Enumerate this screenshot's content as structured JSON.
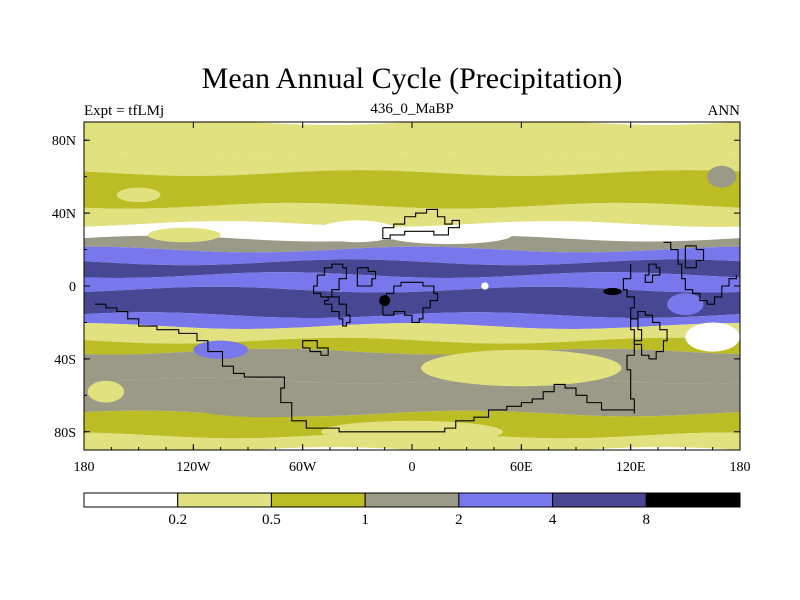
{
  "chart_data": {
    "type": "heatmap",
    "title": "Mean Annual Cycle (Precipitation)",
    "left_label": "Expt = tfLMj",
    "center_label": "436_0_MaBP",
    "right_label": "ANN",
    "x_range": [
      -180,
      180
    ],
    "y_range": [
      -90,
      90
    ],
    "x_ticks": [
      {
        "value": -180,
        "label": "180"
      },
      {
        "value": -120,
        "label": "120W"
      },
      {
        "value": -60,
        "label": "60W"
      },
      {
        "value": 0,
        "label": "0"
      },
      {
        "value": 60,
        "label": "60E"
      },
      {
        "value": 120,
        "label": "120E"
      },
      {
        "value": 180,
        "label": "180"
      }
    ],
    "y_ticks": [
      {
        "value": 80,
        "label": "80N"
      },
      {
        "value": 40,
        "label": "40N"
      },
      {
        "value": 0,
        "label": "0"
      },
      {
        "value": -40,
        "label": "40S"
      },
      {
        "value": -80,
        "label": "80S"
      }
    ],
    "colorbar": {
      "levels": [
        "0.2",
        "0.5",
        "1",
        "2",
        "4",
        "8"
      ],
      "colors": [
        "#ffffff",
        "#e1e17f",
        "#bcbc24",
        "#9a9a87",
        "#7878ec",
        "#474794",
        "#000000"
      ]
    },
    "bands": [
      {
        "lat_top": 90,
        "lat_bottom": 72,
        "level": 1
      },
      {
        "lat_top": 72,
        "lat_bottom": 62,
        "level": 1
      },
      {
        "lat_top": 62,
        "lat_bottom": 44,
        "level": 2
      },
      {
        "lat_top": 44,
        "lat_bottom": 34,
        "level": 1
      },
      {
        "lat_top": 34,
        "lat_bottom": 26,
        "level": 0
      },
      {
        "lat_top": 26,
        "lat_bottom": 20,
        "level": 3
      },
      {
        "lat_top": 20,
        "lat_bottom": 13,
        "level": 4
      },
      {
        "lat_top": 13,
        "lat_bottom": 6,
        "level": 5
      },
      {
        "lat_top": 6,
        "lat_bottom": -2,
        "level": 4
      },
      {
        "lat_top": -2,
        "lat_bottom": -16,
        "level": 5
      },
      {
        "lat_top": -16,
        "lat_bottom": -22,
        "level": 4
      },
      {
        "lat_top": -22,
        "lat_bottom": -30,
        "level": 1
      },
      {
        "lat_top": -30,
        "lat_bottom": -36,
        "level": 2
      },
      {
        "lat_top": -36,
        "lat_bottom": -52,
        "level": 3
      },
      {
        "lat_top": -52,
        "lat_bottom": -70,
        "level": 3
      },
      {
        "lat_top": -70,
        "lat_bottom": -82,
        "level": 2
      },
      {
        "lat_top": -82,
        "lat_bottom": -90,
        "level": 1
      }
    ],
    "patches": [
      {
        "lon": -150,
        "lat": 50,
        "rlon": 12,
        "rlat": 4,
        "level": 1
      },
      {
        "lon": -30,
        "lat": 30,
        "rlon": 22,
        "rlat": 6,
        "level": 0
      },
      {
        "lon": 20,
        "lat": 28,
        "rlon": 35,
        "rlat": 5,
        "level": 0
      },
      {
        "lon": 150,
        "lat": -10,
        "rlon": 10,
        "rlat": 6,
        "level": 4
      },
      {
        "lon": 165,
        "lat": -28,
        "rlon": 15,
        "rlat": 8,
        "level": 0
      },
      {
        "lon": -105,
        "lat": -35,
        "rlon": 15,
        "rlat": 5,
        "level": 4
      },
      {
        "lon": -168,
        "lat": -58,
        "rlon": 10,
        "rlat": 6,
        "level": 1
      },
      {
        "lon": 60,
        "lat": -45,
        "rlon": 55,
        "rlat": 10,
        "level": 1
      },
      {
        "lon": -80,
        "lat": -65,
        "rlon": 45,
        "rlat": 7,
        "level": 3
      },
      {
        "lon": 0,
        "lat": -80,
        "rlon": 50,
        "rlat": 6,
        "level": 1
      },
      {
        "lon": 170,
        "lat": 60,
        "rlon": 8,
        "rlat": 6,
        "level": 3
      },
      {
        "lon": -15,
        "lat": -8,
        "rlon": 3,
        "rlat": 3,
        "level": 6
      },
      {
        "lon": 110,
        "lat": -3,
        "rlon": 5,
        "rlat": 2,
        "level": 6
      },
      {
        "lon": 40,
        "lat": 0,
        "rlon": 2,
        "rlat": 2,
        "level": 0
      },
      {
        "lon": -125,
        "lat": 28,
        "rlon": 20,
        "rlat": 4,
        "level": 1
      }
    ],
    "coastlines": [
      [
        [
          -174,
          -10
        ],
        [
          -168,
          -12
        ],
        [
          -162,
          -14
        ],
        [
          -156,
          -18
        ],
        [
          -150,
          -22
        ],
        [
          -140,
          -24
        ],
        [
          -128,
          -26
        ],
        [
          -118,
          -30
        ],
        [
          -112,
          -36
        ],
        [
          -104,
          -44
        ],
        [
          -98,
          -48
        ],
        [
          -92,
          -50
        ],
        [
          -84,
          -50
        ],
        [
          -74,
          -50
        ],
        [
          -70,
          -56
        ],
        [
          -72,
          -64
        ],
        [
          -66,
          -74
        ],
        [
          -58,
          -78
        ],
        [
          -40,
          -80
        ],
        [
          -20,
          -80
        ],
        [
          0,
          -80
        ],
        [
          18,
          -78
        ],
        [
          24,
          -74
        ],
        [
          34,
          -72
        ],
        [
          42,
          -68
        ],
        [
          52,
          -66
        ],
        [
          60,
          -64
        ],
        [
          66,
          -62
        ],
        [
          72,
          -58
        ],
        [
          78,
          -54
        ],
        [
          84,
          -56
        ],
        [
          90,
          -60
        ],
        [
          96,
          -64
        ],
        [
          104,
          -68
        ],
        [
          112,
          -68
        ],
        [
          122,
          -70
        ],
        [
          122,
          -62
        ],
        [
          120,
          -54
        ],
        [
          120,
          -46
        ],
        [
          118,
          -38
        ],
        [
          122,
          -30
        ],
        [
          126,
          -24
        ],
        [
          124,
          -18
        ],
        [
          120,
          -12
        ],
        [
          122,
          -6
        ],
        [
          118,
          -2
        ],
        [
          116,
          4
        ],
        [
          120,
          12
        ]
      ],
      [
        [
          -48,
          -10
        ],
        [
          -44,
          -14
        ],
        [
          -40,
          -18
        ],
        [
          -38,
          -22
        ],
        [
          -36,
          -20
        ],
        [
          -34,
          -16
        ],
        [
          -36,
          -10
        ],
        [
          -40,
          -6
        ],
        [
          -46,
          -8
        ],
        [
          -48,
          -10
        ]
      ],
      [
        [
          -16,
          -16
        ],
        [
          -10,
          -14
        ],
        [
          -4,
          -16
        ],
        [
          0,
          -20
        ],
        [
          4,
          -18
        ],
        [
          6,
          -12
        ],
        [
          10,
          -8
        ],
        [
          14,
          -4
        ],
        [
          12,
          0
        ],
        [
          6,
          2
        ],
        [
          0,
          2
        ],
        [
          -6,
          0
        ],
        [
          -10,
          -4
        ],
        [
          -14,
          -8
        ],
        [
          -16,
          -16
        ]
      ],
      [
        [
          -16,
          32
        ],
        [
          -10,
          34
        ],
        [
          -4,
          38
        ],
        [
          2,
          40
        ],
        [
          8,
          42
        ],
        [
          14,
          38
        ],
        [
          18,
          34
        ],
        [
          22,
          36
        ],
        [
          26,
          32
        ],
        [
          20,
          28
        ],
        [
          12,
          30
        ],
        [
          4,
          30
        ],
        [
          -4,
          28
        ],
        [
          -12,
          26
        ],
        [
          -16,
          32
        ]
      ],
      [
        [
          -52,
          6
        ],
        [
          -48,
          10
        ],
        [
          -44,
          12
        ],
        [
          -38,
          10
        ],
        [
          -36,
          4
        ],
        [
          -40,
          -2
        ],
        [
          -44,
          -6
        ],
        [
          -50,
          -4
        ],
        [
          -54,
          0
        ],
        [
          -52,
          6
        ]
      ],
      [
        [
          -30,
          10
        ],
        [
          -24,
          8
        ],
        [
          -20,
          4
        ],
        [
          -22,
          0
        ],
        [
          -28,
          0
        ],
        [
          -30,
          4
        ],
        [
          -30,
          10
        ]
      ],
      [
        [
          130,
          -40
        ],
        [
          134,
          -36
        ],
        [
          138,
          -30
        ],
        [
          140,
          -24
        ],
        [
          136,
          -20
        ],
        [
          132,
          -16
        ],
        [
          128,
          -14
        ],
        [
          124,
          -18
        ],
        [
          120,
          -24
        ],
        [
          122,
          -32
        ],
        [
          126,
          -38
        ],
        [
          130,
          -40
        ]
      ],
      [
        [
          138,
          24
        ],
        [
          142,
          20
        ],
        [
          146,
          12
        ],
        [
          148,
          4
        ],
        [
          150,
          -2
        ],
        [
          154,
          -4
        ],
        [
          158,
          -8
        ],
        [
          162,
          -10
        ],
        [
          166,
          -6
        ],
        [
          170,
          0
        ],
        [
          174,
          4
        ],
        [
          178,
          6
        ]
      ],
      [
        [
          130,
          12
        ],
        [
          134,
          10
        ],
        [
          136,
          6
        ],
        [
          132,
          2
        ],
        [
          128,
          6
        ],
        [
          130,
          12
        ]
      ],
      [
        [
          150,
          22
        ],
        [
          156,
          20
        ],
        [
          160,
          14
        ],
        [
          156,
          10
        ],
        [
          150,
          14
        ],
        [
          150,
          22
        ]
      ],
      [
        [
          -60,
          -34
        ],
        [
          -56,
          -36
        ],
        [
          -50,
          -38
        ],
        [
          -46,
          -34
        ],
        [
          -52,
          -30
        ],
        [
          -58,
          -30
        ],
        [
          -60,
          -34
        ]
      ]
    ]
  }
}
